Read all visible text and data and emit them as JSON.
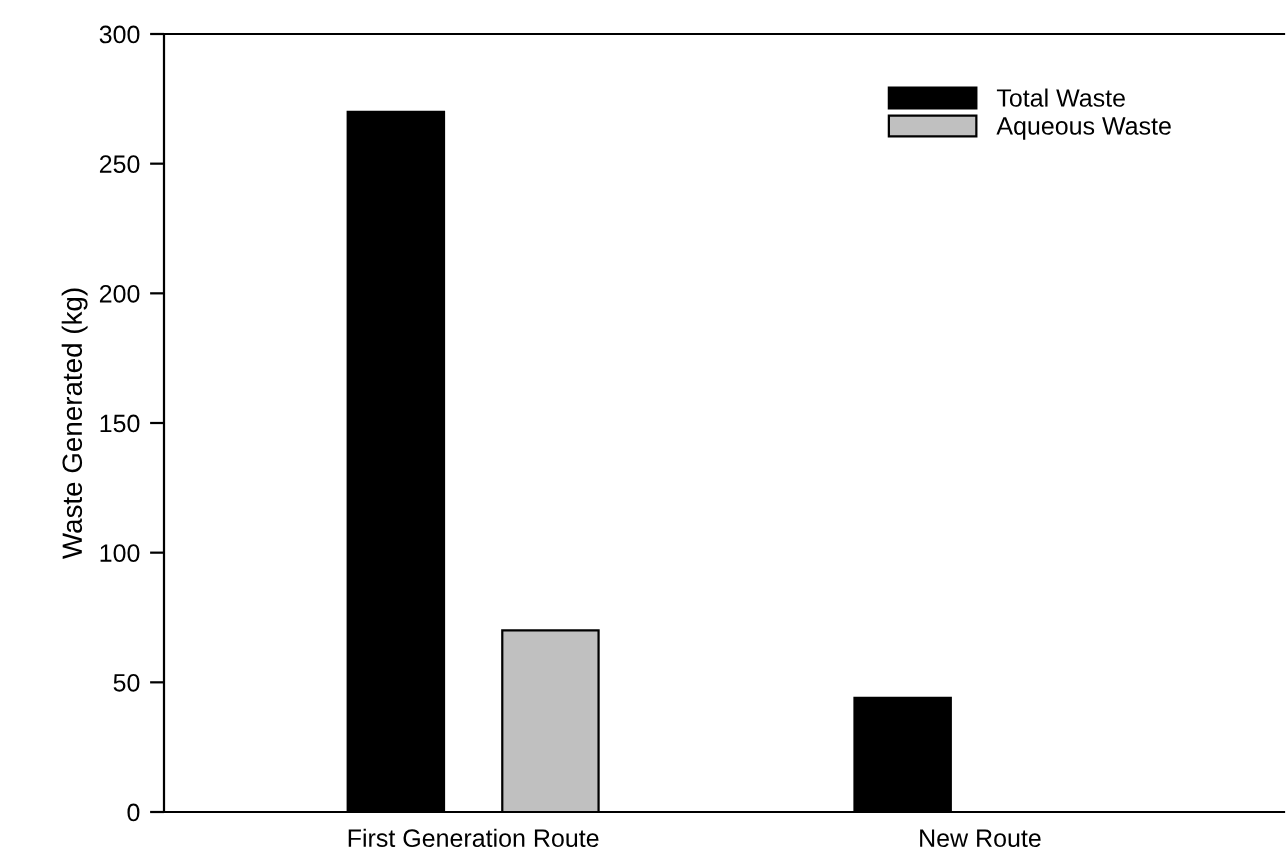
{
  "chart_data": {
    "type": "bar",
    "ylabel": "Waste Generated (kg)",
    "categories": [
      "First Generation Route",
      "New Route"
    ],
    "series": [
      {
        "name": "Total Waste",
        "color": "#000000",
        "values": [
          270,
          44
        ]
      },
      {
        "name": "Aqueous Waste",
        "color": "#c0c0c0",
        "values": [
          70,
          null
        ]
      }
    ],
    "ylim": [
      0,
      300
    ],
    "yticks": [
      0,
      50,
      100,
      150,
      200,
      250,
      300
    ],
    "grid": false,
    "legend": "top right"
  }
}
